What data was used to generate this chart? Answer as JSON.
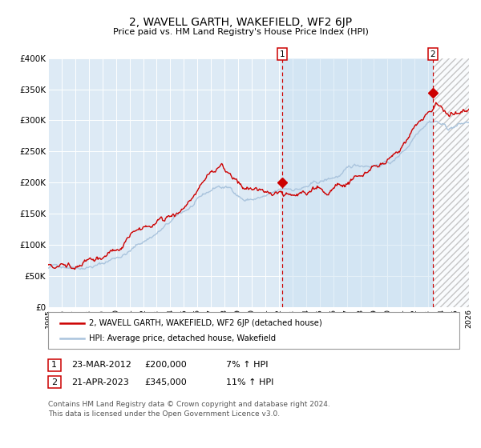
{
  "title": "2, WAVELL GARTH, WAKEFIELD, WF2 6JP",
  "subtitle": "Price paid vs. HM Land Registry's House Price Index (HPI)",
  "title_fontsize": 10,
  "subtitle_fontsize": 8.5,
  "xlim": [
    1995,
    2026
  ],
  "ylim": [
    0,
    400000
  ],
  "yticks": [
    0,
    50000,
    100000,
    150000,
    200000,
    250000,
    300000,
    350000,
    400000
  ],
  "ytick_labels": [
    "£0",
    "£50K",
    "£100K",
    "£150K",
    "£200K",
    "£250K",
    "£300K",
    "£350K",
    "£400K"
  ],
  "xtick_years": [
    1995,
    1996,
    1997,
    1998,
    1999,
    2000,
    2001,
    2002,
    2003,
    2004,
    2005,
    2006,
    2007,
    2008,
    2009,
    2010,
    2011,
    2012,
    2013,
    2014,
    2015,
    2016,
    2017,
    2018,
    2019,
    2020,
    2021,
    2022,
    2023,
    2024,
    2025,
    2026
  ],
  "hpi_color": "#aac4dd",
  "price_color": "#cc0000",
  "bg_color": "#ddeaf5",
  "hatch_region_start": 2023.4,
  "vline1_x": 2012.22,
  "vline2_x": 2023.32,
  "point1_x": 2012.22,
  "point1_y": 200000,
  "point2_x": 2023.32,
  "point2_y": 345000,
  "legend_line1": "2, WAVELL GARTH, WAKEFIELD, WF2 6JP (detached house)",
  "legend_line2": "HPI: Average price, detached house, Wakefield",
  "table_row1": [
    "1",
    "23-MAR-2012",
    "£200,000",
    "7% ↑ HPI"
  ],
  "table_row2": [
    "2",
    "21-APR-2023",
    "£345,000",
    "11% ↑ HPI"
  ],
  "footer": "Contains HM Land Registry data © Crown copyright and database right 2024.\nThis data is licensed under the Open Government Licence v3.0."
}
